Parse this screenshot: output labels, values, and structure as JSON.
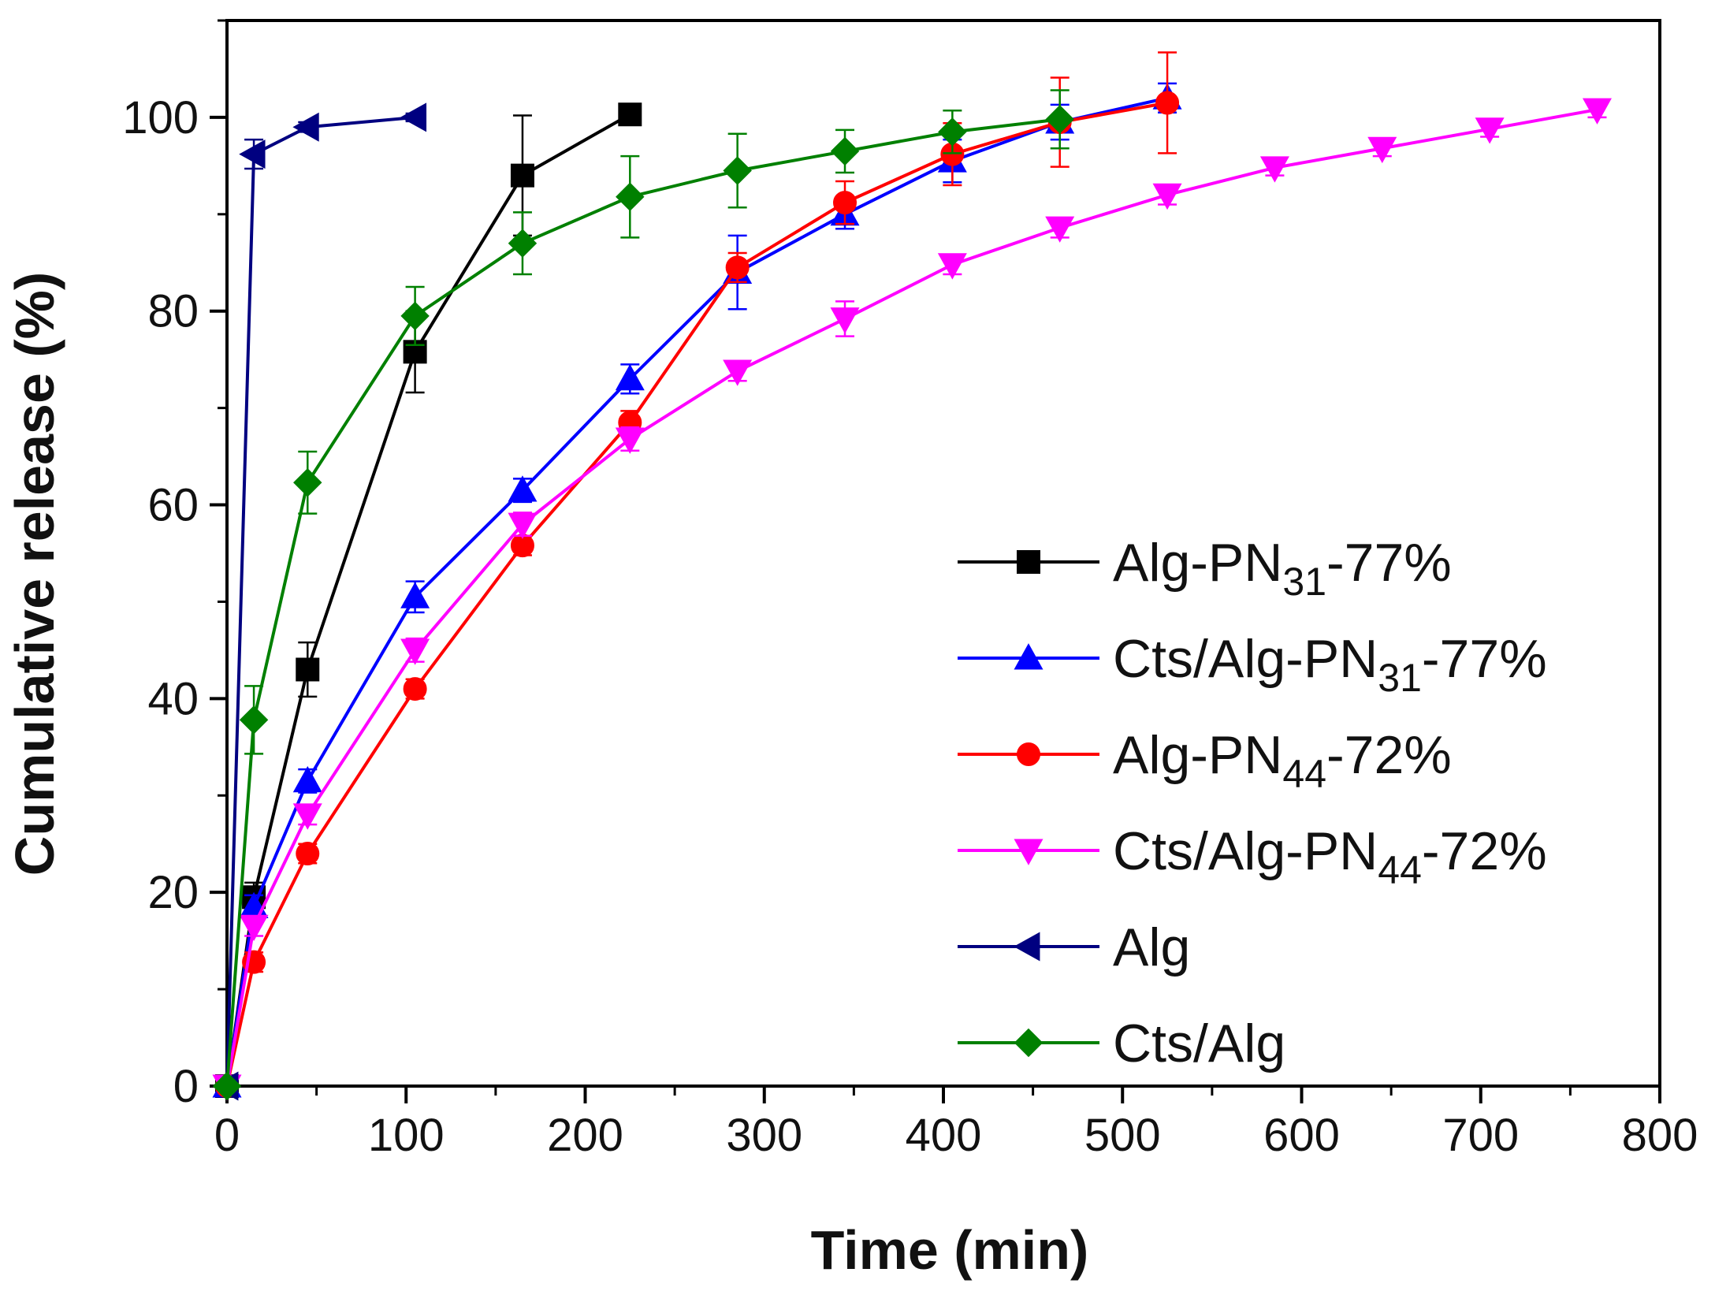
{
  "chart_data": {
    "type": "line",
    "title": "",
    "xlabel": "Time (min)",
    "ylabel": "Cumulative release (%)",
    "xlim": [
      0,
      800
    ],
    "ylim": [
      0,
      110
    ],
    "xticks": [
      0,
      100,
      200,
      300,
      400,
      500,
      600,
      700,
      800
    ],
    "yticks": [
      0,
      20,
      40,
      60,
      80,
      100
    ],
    "grid": false,
    "legend_position": "right",
    "error_bars": true,
    "series": [
      {
        "name": "Alg-PN31-77%",
        "label_main": "Alg-PN",
        "label_sub": "31",
        "label_suffix": "-77%",
        "color": "#000000",
        "marker": "square",
        "x": [
          0,
          15,
          45,
          105,
          165,
          225
        ],
        "y": [
          0,
          19.5,
          43,
          75.8,
          94,
          100.3
        ],
        "err": [
          0,
          1.5,
          2.8,
          4.2,
          6.2,
          0
        ]
      },
      {
        "name": "Cts/Alg-PN31-77%",
        "label_main": "Cts/Alg-PN",
        "label_sub": "31",
        "label_suffix": "-77%",
        "color": "#0000ff",
        "marker": "triangle-up",
        "x": [
          0,
          15,
          45,
          105,
          165,
          225,
          285,
          345,
          405,
          465,
          525
        ],
        "y": [
          0,
          18.5,
          31.5,
          50.5,
          61.5,
          73,
          84,
          90,
          95.5,
          99.5,
          102
        ],
        "err": [
          0,
          1.2,
          1.2,
          1.6,
          1.2,
          1.5,
          3.8,
          1.5,
          2.2,
          1.8,
          1.5
        ]
      },
      {
        "name": "Alg-PN44-72%",
        "label_main": "Alg-PN",
        "label_sub": "44",
        "label_suffix": "-72%",
        "color": "#ff0000",
        "marker": "circle",
        "x": [
          0,
          15,
          45,
          105,
          165,
          225,
          285,
          345,
          405,
          465,
          525
        ],
        "y": [
          0,
          12.8,
          24,
          41,
          55.8,
          68.5,
          84.5,
          91.2,
          96.2,
          99.5,
          101.5
        ],
        "err": [
          0,
          1,
          1,
          1,
          1,
          1.2,
          1.5,
          2.2,
          3.2,
          4.6,
          5.2
        ]
      },
      {
        "name": "Cts/Alg-PN44-72%",
        "label_main": "Cts/Alg-PN",
        "label_sub": "44",
        "label_suffix": "-72%",
        "color": "#ff00ff",
        "marker": "triangle-down",
        "x": [
          0,
          15,
          45,
          105,
          165,
          225,
          285,
          345,
          405,
          465,
          525,
          585,
          645,
          705,
          765
        ],
        "y": [
          0,
          16.5,
          28,
          45,
          58,
          66.8,
          73.8,
          79.2,
          84.8,
          88.6,
          92,
          94.8,
          96.8,
          98.8,
          100.8
        ],
        "err": [
          0,
          1,
          1,
          1.2,
          1.2,
          1.2,
          1,
          1.8,
          1,
          1,
          1,
          0.8,
          0.8,
          0.8,
          0.8
        ]
      },
      {
        "name": "Alg",
        "label_main": "Alg",
        "label_sub": "",
        "label_suffix": "",
        "color": "#000080",
        "marker": "triangle-left",
        "x": [
          0,
          15,
          45,
          105
        ],
        "y": [
          0,
          96.2,
          99,
          100
        ],
        "err": [
          0,
          1.5,
          0.5,
          0.4
        ]
      },
      {
        "name": "Cts/Alg",
        "label_main": "Cts/Alg",
        "label_sub": "",
        "label_suffix": "",
        "color": "#008000",
        "marker": "diamond",
        "x": [
          0,
          15,
          45,
          105,
          165,
          225,
          285,
          345,
          405,
          465
        ],
        "y": [
          0,
          37.8,
          62.3,
          79.5,
          87,
          91.8,
          94.5,
          96.5,
          98.5,
          99.8
        ],
        "err": [
          0,
          3.5,
          3.2,
          3,
          3.2,
          4.2,
          3.8,
          2.2,
          2.2,
          3
        ]
      }
    ]
  }
}
